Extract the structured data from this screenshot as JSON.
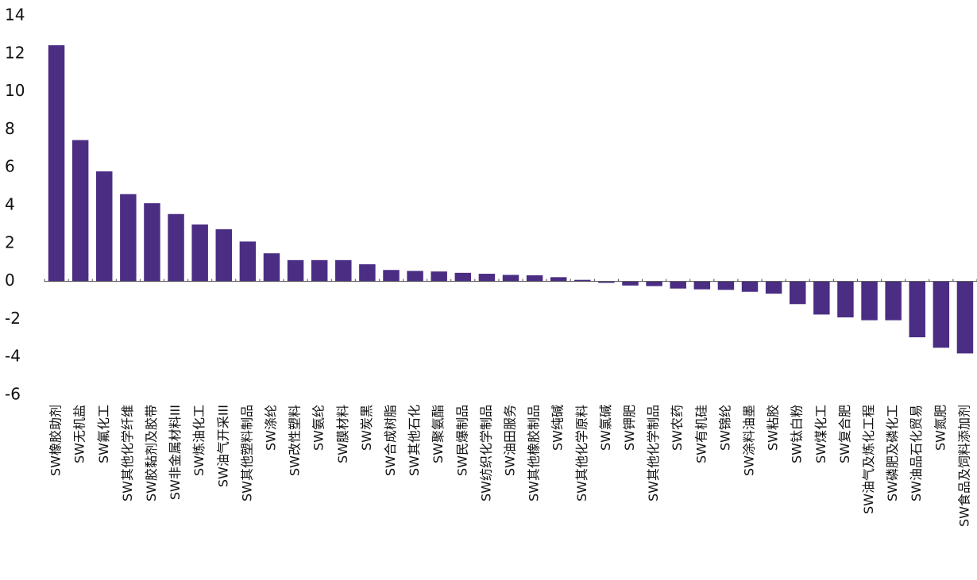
{
  "chart_data": {
    "type": "bar",
    "title": "",
    "xlabel": "",
    "ylabel": "",
    "ylim": [
      -6,
      14
    ],
    "yticks": [
      -6,
      -4,
      -2,
      0,
      2,
      4,
      6,
      8,
      10,
      12,
      14
    ],
    "grid": false,
    "legend": "none",
    "color": "#4b2d84",
    "categories": [
      "SW橡胶助剂",
      "SW无机盐",
      "SW氟化工",
      "SW其他化学纤维",
      "SW胶黏剂及胶带",
      "SW非金属材料III",
      "SW炼油化工",
      "SW油气开采III",
      "SW其他塑料制品",
      "SW涤纶",
      "SW改性塑料",
      "SW氨纶",
      "SW膜材料",
      "SW炭黑",
      "SW合成树脂",
      "SW其他石化",
      "SW聚氨酯",
      "SW民爆制品",
      "SW纺织化学制品",
      "SW油田服务",
      "SW其他橡胶制品",
      "SW纯碱",
      "SW其他化学原料",
      "SW氯碱",
      "SW钾肥",
      "SW其他化学制品",
      "SW农药",
      "SW有机硅",
      "SW锦纶",
      "SW涂料油墨",
      "SW粘胶",
      "SW钛白粉",
      "SW煤化工",
      "SW复合肥",
      "SW油气及炼化工程",
      "SW磷肥及磷化工",
      "SW油品石化贸易",
      "SW氮肥",
      "SW食品及饲料添加剂"
    ],
    "values": [
      12.45,
      7.45,
      5.8,
      4.6,
      4.12,
      3.55,
      3.0,
      2.75,
      2.1,
      1.48,
      1.12,
      1.12,
      1.12,
      0.9,
      0.6,
      0.55,
      0.52,
      0.45,
      0.4,
      0.34,
      0.32,
      0.22,
      0.08,
      -0.08,
      -0.22,
      -0.25,
      -0.38,
      -0.42,
      -0.45,
      -0.55,
      -0.65,
      -1.2,
      -1.75,
      -1.9,
      -2.05,
      -2.05,
      -2.95,
      -3.5,
      -3.8
    ]
  }
}
